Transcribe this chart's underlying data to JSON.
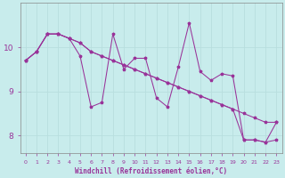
{
  "xlabel": "Windchill (Refroidissement éolien,°C)",
  "background_color": "#c8ecec",
  "line_color": "#993399",
  "grid_color": "#aadddd",
  "hours": [
    0,
    1,
    2,
    3,
    4,
    5,
    6,
    7,
    8,
    9,
    10,
    11,
    12,
    13,
    14,
    15,
    16,
    17,
    18,
    19,
    20,
    21,
    22,
    23
  ],
  "line1": [
    9.7,
    9.9,
    10.3,
    10.3,
    10.2,
    10.1,
    9.9,
    9.8,
    9.7,
    9.6,
    9.5,
    9.4,
    9.3,
    9.2,
    9.1,
    9.0,
    8.9,
    8.8,
    8.7,
    8.6,
    8.5,
    8.4,
    8.3,
    8.3
  ],
  "line2": [
    9.7,
    9.9,
    10.3,
    10.3,
    10.2,
    10.1,
    9.9,
    9.8,
    9.7,
    9.6,
    9.5,
    9.4,
    9.3,
    9.2,
    9.1,
    9.0,
    8.9,
    8.8,
    8.7,
    8.6,
    7.9,
    7.9,
    7.85,
    7.9
  ],
  "line3": [
    9.7,
    9.9,
    10.3,
    10.3,
    10.2,
    9.8,
    8.65,
    8.75,
    10.3,
    9.5,
    9.75,
    9.75,
    8.85,
    8.65,
    9.55,
    10.55,
    9.45,
    9.25,
    9.4,
    9.35,
    7.9,
    7.9,
    7.85,
    8.3
  ],
  "ylim": [
    7.6,
    11.0
  ],
  "yticks": [
    8,
    9,
    10
  ],
  "xlim": [
    -0.5,
    23.5
  ]
}
